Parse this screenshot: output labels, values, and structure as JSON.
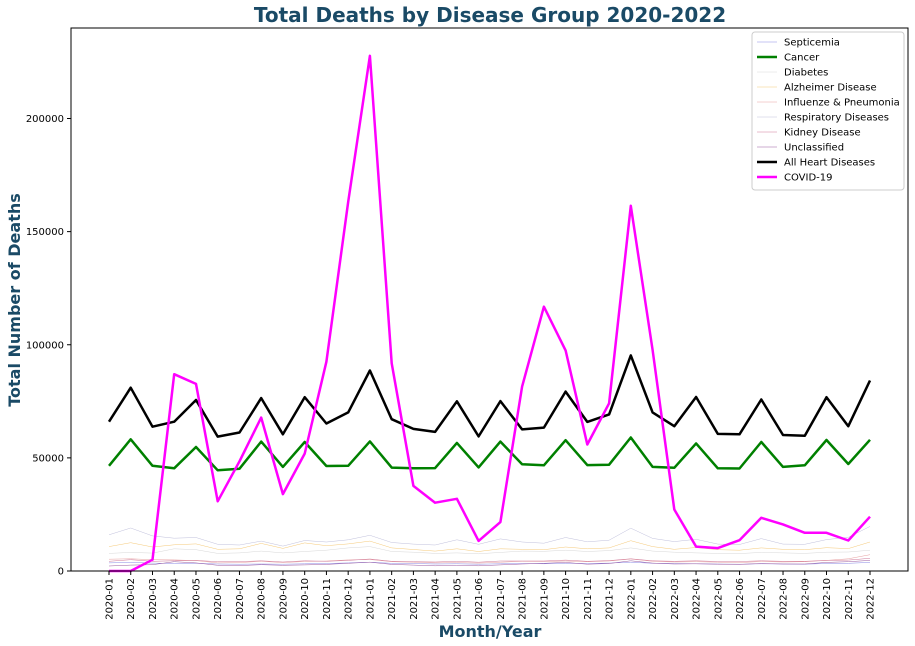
{
  "chart_data": {
    "type": "line",
    "title": "Total Deaths by Disease Group 2020-2022",
    "xlabel": "Month/Year",
    "ylabel": "Total Number of Deaths",
    "ylim": [
      0,
      240000
    ],
    "yticks": [
      0,
      50000,
      100000,
      150000,
      200000
    ],
    "ytick_labels": [
      "0",
      "50000",
      "100000",
      "150000",
      "200000"
    ],
    "legend_position": "top-right",
    "grid": false,
    "title_color": "#1a4a66",
    "categories": [
      "2020-01",
      "2020-02",
      "2020-03",
      "2020-04",
      "2020-05",
      "2020-06",
      "2020-07",
      "2020-08",
      "2020-09",
      "2020-10",
      "2020-11",
      "2020-12",
      "2021-01",
      "2021-02",
      "2021-03",
      "2021-04",
      "2021-05",
      "2021-06",
      "2021-07",
      "2021-08",
      "2021-09",
      "2021-10",
      "2021-11",
      "2021-12",
      "2022-01",
      "2022-02",
      "2022-03",
      "2022-04",
      "2022-05",
      "2022-06",
      "2022-07",
      "2022-08",
      "2022-09",
      "2022-10",
      "2022-11",
      "2022-12"
    ],
    "series": [
      {
        "name": "Septicemia",
        "color": "#8a8ae6",
        "width": 0.5,
        "values": [
          3600,
          3800,
          3500,
          3300,
          3400,
          3100,
          3000,
          3100,
          3000,
          3200,
          3300,
          3600,
          3900,
          3400,
          3300,
          3100,
          3200,
          3000,
          3200,
          3300,
          3200,
          3400,
          3300,
          3500,
          3900,
          3400,
          3300,
          3200,
          3100,
          3000,
          3200,
          3100,
          3000,
          3300,
          3400,
          3800
        ]
      },
      {
        "name": "Cancer",
        "color": "#008000",
        "width": 2.5,
        "values": [
          46500,
          58200,
          46500,
          45400,
          54800,
          44500,
          45200,
          57200,
          46000,
          57000,
          46400,
          46500,
          57300,
          45700,
          45400,
          45500,
          56600,
          45800,
          57200,
          47200,
          46700,
          57800,
          46800,
          47000,
          59000,
          46000,
          45600,
          56400,
          45400,
          45300,
          57000,
          46000,
          46700,
          57900,
          47300,
          58000
        ]
      },
      {
        "name": "Diabetes",
        "color": "#d8d8d8",
        "width": 0.5,
        "values": [
          7800,
          8200,
          7900,
          9800,
          9400,
          7800,
          8000,
          8800,
          8000,
          8600,
          9200,
          10200,
          10800,
          8600,
          8300,
          7800,
          8000,
          7600,
          8200,
          8800,
          8700,
          9200,
          8600,
          9000,
          10200,
          8800,
          8300,
          8000,
          7800,
          7700,
          8200,
          8000,
          7800,
          8300,
          8400,
          9200
        ]
      },
      {
        "name": "Alzheimer Disease",
        "color": "#f5c978",
        "width": 0.5,
        "values": [
          10800,
          12500,
          10600,
          11600,
          12000,
          9600,
          9800,
          12200,
          10000,
          12400,
          11200,
          12000,
          13200,
          10200,
          9500,
          8800,
          9800,
          8600,
          9800,
          9600,
          9400,
          10600,
          9800,
          10200,
          13400,
          10800,
          9600,
          10400,
          9400,
          9200,
          10200,
          9600,
          9400,
          10300,
          9900,
          12800
        ]
      },
      {
        "name": "Influenze & Pneumonia",
        "color": "#e8a0a0",
        "width": 0.5,
        "values": [
          5200,
          5400,
          5000,
          4900,
          4600,
          3600,
          3700,
          4300,
          3700,
          4200,
          4400,
          4900,
          5100,
          4100,
          3900,
          3600,
          3700,
          3500,
          3900,
          4300,
          4200,
          4400,
          4100,
          4400,
          5300,
          4300,
          4000,
          4100,
          3900,
          3700,
          4200,
          4000,
          4100,
          4700,
          5400,
          7200
        ]
      },
      {
        "name": "Respiratory Diseases",
        "color": "#c0c0dc",
        "width": 0.5,
        "values": [
          16000,
          19000,
          15500,
          14500,
          14800,
          11800,
          11500,
          13200,
          11000,
          13500,
          12800,
          13800,
          15800,
          12600,
          11900,
          11500,
          13800,
          11800,
          14200,
          12800,
          12300,
          14800,
          12900,
          13600,
          18900,
          14400,
          13000,
          14000,
          11900,
          11700,
          14300,
          11900,
          11800,
          13900,
          14900,
          19700
        ]
      },
      {
        "name": "Kidney Disease",
        "color": "#d07898",
        "width": 0.5,
        "values": [
          4300,
          5000,
          4300,
          4500,
          4700,
          4100,
          4100,
          4500,
          4000,
          4500,
          4300,
          4700,
          5300,
          4300,
          4100,
          4000,
          4300,
          3900,
          4400,
          4400,
          4400,
          4800,
          4300,
          4600,
          5400,
          4500,
          4300,
          4500,
          4200,
          4200,
          4500,
          4300,
          4300,
          4700,
          4800,
          5600
        ]
      },
      {
        "name": "Unclassified",
        "color": "#9a5aa0",
        "width": 0.5,
        "values": [
          2200,
          2600,
          2800,
          4100,
          3600,
          2500,
          2400,
          2800,
          2500,
          2700,
          2900,
          3400,
          3900,
          2900,
          2600,
          2300,
          2500,
          2300,
          2700,
          3100,
          3400,
          3800,
          3000,
          3300,
          4500,
          3500,
          3100,
          3200,
          3000,
          2900,
          3300,
          3100,
          3100,
          3800,
          4100,
          4700
        ]
      },
      {
        "name": "All Heart Diseases",
        "color": "#000000",
        "width": 2.5,
        "values": [
          66000,
          81000,
          63800,
          66000,
          75600,
          59400,
          61200,
          76400,
          60400,
          76800,
          65200,
          70100,
          88600,
          67100,
          62800,
          61500,
          75000,
          59500,
          75100,
          62600,
          63400,
          79300,
          65900,
          69200,
          95300,
          70100,
          64000,
          76900,
          60600,
          60400,
          75800,
          60100,
          59800,
          76800,
          64000,
          84200
        ]
      },
      {
        "name": "COVID-19",
        "color": "#ff00ff",
        "width": 2.5,
        "values": [
          0,
          0,
          5000,
          87000,
          82700,
          30800,
          48500,
          67800,
          34000,
          51900,
          92500,
          163200,
          227700,
          91800,
          37600,
          30200,
          31900,
          13300,
          21600,
          81500,
          116800,
          97500,
          55900,
          74100,
          161400,
          97700,
          27200,
          10800,
          10100,
          13600,
          23500,
          20600,
          16900,
          16900,
          13500,
          24000
        ]
      }
    ]
  }
}
